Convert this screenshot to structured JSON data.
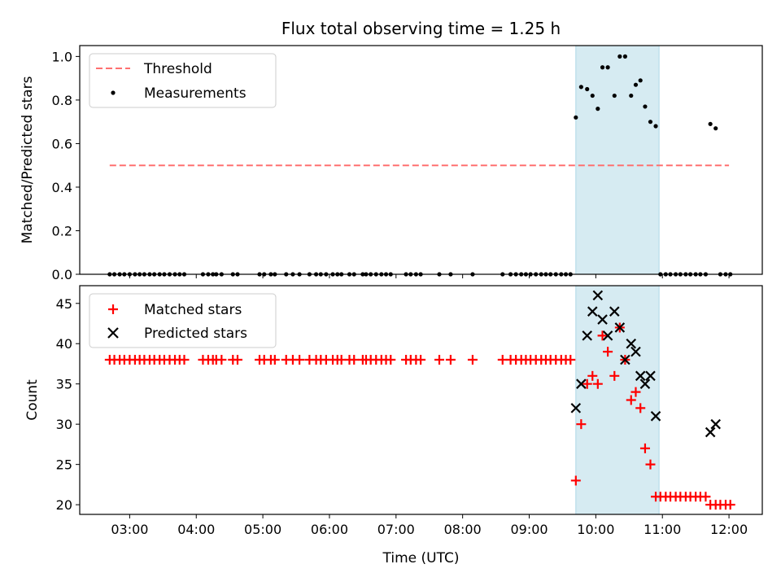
{
  "chart_data": [
    {
      "type": "scatter",
      "title": "Flux total observing time = 1.25 h",
      "xlabel": "",
      "ylabel": "Matched/Predicted stars",
      "xlim": [
        2.25,
        12.5
      ],
      "ylim": [
        0,
        1.05
      ],
      "yticks": [
        0.0,
        0.2,
        0.4,
        0.6,
        0.8,
        1.0
      ],
      "ytick_labels": [
        "0.0",
        "0.2",
        "0.4",
        "0.6",
        "0.8",
        "1.0"
      ],
      "grid": false,
      "legend": "top-left",
      "span": {
        "x0": 9.7,
        "x1": 10.95,
        "color": "#add8e6"
      },
      "threshold": {
        "name": "Threshold",
        "x": [
          2.7,
          12.0
        ],
        "y": 0.5,
        "color": "#ff7070",
        "style": "dashed"
      },
      "series": [
        {
          "name": "Measurements",
          "color": "#000000",
          "marker": "dot",
          "x": [
            2.7,
            2.77,
            2.85,
            2.92,
            3.0,
            3.08,
            3.15,
            3.22,
            3.3,
            3.37,
            3.45,
            3.52,
            3.6,
            3.68,
            3.75,
            3.82,
            4.1,
            4.18,
            4.25,
            4.3,
            4.38,
            4.55,
            4.62,
            4.95,
            5.02,
            5.12,
            5.18,
            5.35,
            5.45,
            5.55,
            5.7,
            5.8,
            5.87,
            5.95,
            6.05,
            6.12,
            6.18,
            6.3,
            6.37,
            6.5,
            6.55,
            6.62,
            6.7,
            6.78,
            6.85,
            6.92,
            7.15,
            7.22,
            7.3,
            7.37,
            7.65,
            7.82,
            8.15,
            8.6,
            8.72,
            8.8,
            8.88,
            8.95,
            9.02,
            9.1,
            9.18,
            9.25,
            9.32,
            9.4,
            9.48,
            9.55,
            9.62,
            9.7,
            9.78,
            9.87,
            9.95,
            10.03,
            10.1,
            10.18,
            10.28,
            10.36,
            10.44,
            10.53,
            10.6,
            10.67,
            10.74,
            10.82,
            10.9,
            10.97,
            11.05,
            11.12,
            11.2,
            11.27,
            11.35,
            11.42,
            11.5,
            11.57,
            11.65,
            11.72,
            11.8,
            11.87,
            11.95,
            12.02
          ],
          "y": [
            0,
            0,
            0,
            0,
            0,
            0,
            0,
            0,
            0,
            0,
            0,
            0,
            0,
            0,
            0,
            0,
            0,
            0,
            0,
            0,
            0,
            0,
            0,
            0,
            0,
            0,
            0,
            0,
            0,
            0,
            0,
            0,
            0,
            0,
            0,
            0,
            0,
            0,
            0,
            0,
            0,
            0,
            0,
            0,
            0,
            0,
            0,
            0,
            0,
            0,
            0,
            0,
            0,
            0,
            0,
            0,
            0,
            0,
            0,
            0,
            0,
            0,
            0,
            0,
            0,
            0,
            0,
            0.72,
            0.86,
            0.85,
            0.82,
            0.76,
            0.95,
            0.95,
            0.82,
            1.0,
            1.0,
            0.82,
            0.87,
            0.89,
            0.77,
            0.7,
            0.68,
            0,
            0,
            0,
            0,
            0,
            0,
            0,
            0,
            0,
            0,
            0.69,
            0.67,
            0,
            0,
            0
          ]
        }
      ]
    },
    {
      "type": "scatter",
      "title": "",
      "xlabel": "Time (UTC)",
      "ylabel": "Count",
      "xlim": [
        2.25,
        12.5
      ],
      "ylim": [
        18.8,
        47.2
      ],
      "xticks": [
        3,
        4,
        5,
        6,
        7,
        8,
        9,
        10,
        11,
        12
      ],
      "xtick_labels": [
        "03:00",
        "04:00",
        "05:00",
        "06:00",
        "07:00",
        "08:00",
        "09:00",
        "10:00",
        "11:00",
        "12:00"
      ],
      "yticks": [
        20,
        25,
        30,
        35,
        40,
        45
      ],
      "ytick_labels": [
        "20",
        "25",
        "30",
        "35",
        "40",
        "45"
      ],
      "grid": false,
      "legend": "top-left",
      "span": {
        "x0": 9.7,
        "x1": 10.95,
        "color": "#add8e6"
      },
      "series": [
        {
          "name": "Matched stars",
          "color": "#ff0000",
          "marker": "plus",
          "x": [
            2.7,
            2.77,
            2.85,
            2.92,
            3.0,
            3.08,
            3.15,
            3.22,
            3.3,
            3.37,
            3.45,
            3.52,
            3.6,
            3.68,
            3.75,
            3.82,
            4.1,
            4.18,
            4.25,
            4.3,
            4.38,
            4.55,
            4.62,
            4.95,
            5.02,
            5.12,
            5.18,
            5.35,
            5.45,
            5.55,
            5.7,
            5.8,
            5.87,
            5.95,
            6.05,
            6.12,
            6.18,
            6.3,
            6.37,
            6.5,
            6.55,
            6.62,
            6.7,
            6.78,
            6.85,
            6.92,
            7.15,
            7.22,
            7.3,
            7.37,
            7.65,
            7.82,
            8.15,
            8.6,
            8.72,
            8.8,
            8.88,
            8.95,
            9.02,
            9.1,
            9.18,
            9.25,
            9.32,
            9.4,
            9.48,
            9.55,
            9.62,
            9.7,
            9.78,
            9.87,
            9.95,
            10.03,
            10.1,
            10.18,
            10.28,
            10.36,
            10.44,
            10.53,
            10.6,
            10.67,
            10.74,
            10.82,
            10.9,
            10.97,
            11.05,
            11.12,
            11.2,
            11.27,
            11.35,
            11.42,
            11.5,
            11.57,
            11.65,
            11.72,
            11.8,
            11.87,
            11.95,
            12.02
          ],
          "y": [
            38,
            38,
            38,
            38,
            38,
            38,
            38,
            38,
            38,
            38,
            38,
            38,
            38,
            38,
            38,
            38,
            38,
            38,
            38,
            38,
            38,
            38,
            38,
            38,
            38,
            38,
            38,
            38,
            38,
            38,
            38,
            38,
            38,
            38,
            38,
            38,
            38,
            38,
            38,
            38,
            38,
            38,
            38,
            38,
            38,
            38,
            38,
            38,
            38,
            38,
            38,
            38,
            38,
            38,
            38,
            38,
            38,
            38,
            38,
            38,
            38,
            38,
            38,
            38,
            38,
            38,
            38,
            23,
            30,
            35,
            36,
            35,
            41,
            39,
            36,
            42,
            38,
            33,
            34,
            32,
            27,
            25,
            21,
            21,
            21,
            21,
            21,
            21,
            21,
            21,
            21,
            21,
            21,
            20,
            20,
            20,
            20,
            20
          ]
        },
        {
          "name": "Predicted stars",
          "color": "#000000",
          "marker": "x",
          "x": [
            9.7,
            9.78,
            9.87,
            9.95,
            10.03,
            10.1,
            10.18,
            10.28,
            10.36,
            10.44,
            10.53,
            10.6,
            10.67,
            10.74,
            10.82,
            10.9,
            11.72,
            11.8
          ],
          "y": [
            32,
            35,
            41,
            44,
            46,
            43,
            41,
            44,
            42,
            38,
            40,
            39,
            36,
            35,
            36,
            31,
            29,
            30
          ]
        }
      ]
    }
  ]
}
